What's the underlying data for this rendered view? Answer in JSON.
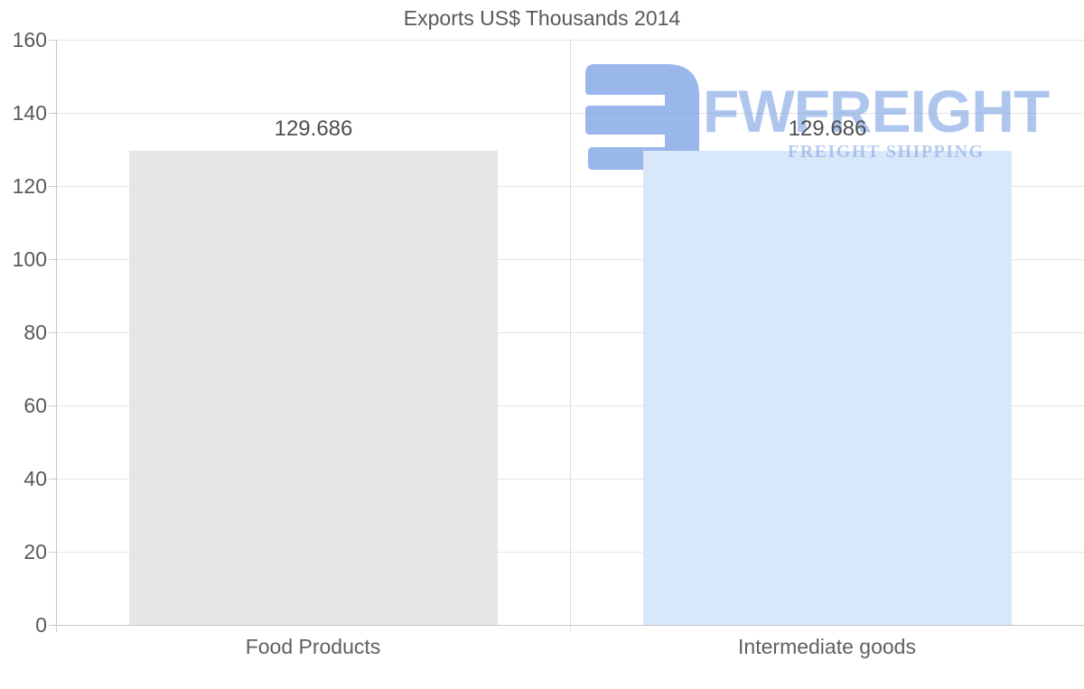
{
  "page": {
    "background": "#ffffff"
  },
  "chart_data": {
    "type": "bar",
    "title": "Exports US$ Thousands 2014",
    "categories": [
      "Food Products",
      "Intermediate goods"
    ],
    "series": [
      {
        "name": "Exports US$ Thousands 2014",
        "values": [
          129.686,
          129.686
        ]
      }
    ],
    "value_labels": [
      "129.686",
      "129.686"
    ],
    "bar_colors": [
      "#e6e6e6",
      "#d8e7f9"
    ],
    "xlabel": "",
    "ylabel": "",
    "ylim": [
      0,
      160
    ],
    "yticks": [
      0,
      20,
      40,
      60,
      80,
      100,
      120,
      140,
      160
    ],
    "grid": "horizontal gridlines on, category separator line between slots",
    "legend_position": "none"
  },
  "watermark": {
    "brand": "FWFREIGHT",
    "tagline": "FREIGHT SHIPPING",
    "icon": "fwfreight-logo-icon",
    "icon_color": "rgba(99,145,224,0.65)",
    "brand_color": "rgba(125,163,228,0.62)",
    "tagline_color": "rgba(125,163,228,0.55)"
  },
  "colors": {
    "title_text": "#58595b",
    "tick_text": "#58595b",
    "category_text": "#606060",
    "value_text": "#4f4f4f",
    "gridline": "#e5e5e5",
    "axis_line": "#c9c9c9",
    "baseline": "#c6c6c6",
    "separator": "#dfdfdf"
  }
}
